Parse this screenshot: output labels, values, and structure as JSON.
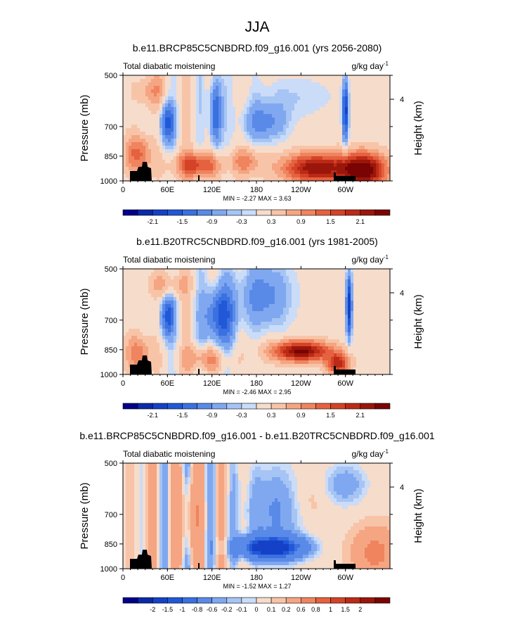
{
  "figure": {
    "title": "JJA"
  },
  "chart_data": [
    {
      "type": "heatmap",
      "title": "b.e11.BRCP85C5CNBDRD.f09_g16.001 (yrs 2056-2080)",
      "left_label": "Total diabatic moistening",
      "units_main": "g/kg day",
      "units_exp": "-1",
      "ylabel": "Pressure (mb)",
      "ylabel_right": "Height (km)",
      "yticks": [
        "500",
        "700",
        "850",
        "1000"
      ],
      "ytick_values": [
        500,
        700,
        850,
        1000
      ],
      "right_tick": "4",
      "xticks": [
        "0",
        "60E",
        "120E",
        "180",
        "120W",
        "60W"
      ],
      "xtick_values": [
        0,
        60,
        120,
        180,
        240,
        300
      ],
      "xlim": [
        0,
        360
      ],
      "ylim": [
        1000,
        500
      ],
      "stats": "MIN = -2.27  MAX =  3.63",
      "min": -2.27,
      "max": 3.63,
      "colorbar_labels": [
        "-2.1",
        "-1.5",
        "-0.9",
        "-0.3",
        "0.3",
        "0.9",
        "1.5",
        "2.1"
      ],
      "colorbar_levels": 18,
      "colorbar_labels_at": [
        1,
        3,
        5,
        7,
        9,
        11,
        13,
        15
      ]
    },
    {
      "type": "heatmap",
      "title": "b.e11.B20TRC5CNBDRD.f09_g16.001 (yrs 1981-2005)",
      "left_label": "Total diabatic moistening",
      "units_main": "g/kg day",
      "units_exp": "-1",
      "ylabel": "Pressure (mb)",
      "ylabel_right": "Height (km)",
      "yticks": [
        "500",
        "700",
        "850",
        "1000"
      ],
      "ytick_values": [
        500,
        700,
        850,
        1000
      ],
      "right_tick": "4",
      "xticks": [
        "0",
        "60E",
        "120E",
        "180",
        "120W",
        "60W"
      ],
      "xtick_values": [
        0,
        60,
        120,
        180,
        240,
        300
      ],
      "xlim": [
        0,
        360
      ],
      "ylim": [
        1000,
        500
      ],
      "stats": "MIN = -2.46  MAX =  2.95",
      "min": -2.46,
      "max": 2.95,
      "colorbar_labels": [
        "-2.1",
        "-1.5",
        "-0.9",
        "-0.3",
        "0.3",
        "0.9",
        "1.5",
        "2.1"
      ],
      "colorbar_levels": 18,
      "colorbar_labels_at": [
        1,
        3,
        5,
        7,
        9,
        11,
        13,
        15
      ]
    },
    {
      "type": "heatmap",
      "title": "b.e11.BRCP85C5CNBDRD.f09_g16.001 - b.e11.B20TRC5CNBDRD.f09_g16.001",
      "left_label": "Total diabatic moistening",
      "units_main": "g/kg day",
      "units_exp": "-1",
      "ylabel": "Pressure (mb)",
      "ylabel_right": "Height (km)",
      "yticks": [
        "500",
        "700",
        "850",
        "1000"
      ],
      "ytick_values": [
        500,
        700,
        850,
        1000
      ],
      "right_tick": "4",
      "xticks": [
        "0",
        "60E",
        "120E",
        "180",
        "120W",
        "60W"
      ],
      "xtick_values": [
        0,
        60,
        120,
        180,
        240,
        300
      ],
      "xlim": [
        0,
        360
      ],
      "ylim": [
        1000,
        500
      ],
      "stats": "MIN = -1.52  MAX =  1.27",
      "min": -1.52,
      "max": 1.27,
      "colorbar_labels": [
        "-2",
        "-1.5",
        "-1",
        "-0.8",
        "-0.6",
        "-0.2",
        "-0.1",
        "0",
        "0.1",
        "0.2",
        "0.6",
        "0.8",
        "1",
        "1.5",
        "2"
      ],
      "colorbar_levels": 18,
      "colorbar_labels_at": [
        1,
        2,
        3,
        4,
        5,
        6,
        7,
        8,
        9,
        10,
        11,
        12,
        13,
        14,
        15
      ]
    }
  ],
  "palette": [
    "#00008b",
    "#0a2aa8",
    "#1441c7",
    "#2058d8",
    "#3a70e0",
    "#5a8ae8",
    "#80a8f0",
    "#a6c4f4",
    "#cadcf8",
    "#f6dccb",
    "#f8c4a8",
    "#f5a582",
    "#ef845e",
    "#e5613f",
    "#d44327",
    "#bb2a16",
    "#9a160a",
    "#7a0403"
  ],
  "terrain_color": "#000000"
}
